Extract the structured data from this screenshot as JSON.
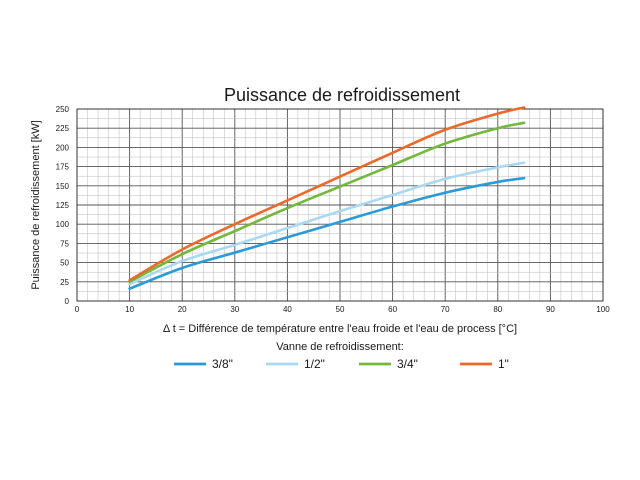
{
  "chart_data": {
    "type": "line",
    "title": "Puissance de refroidissement",
    "xlabel": "Δ t = Différence de température entre l'eau froide et l'eau de process [°C]",
    "ylabel": "Puissance de refroidissement [kW]",
    "xlim": [
      0,
      100
    ],
    "ylim": [
      0,
      250
    ],
    "xticks": [
      0,
      10,
      20,
      30,
      40,
      50,
      60,
      70,
      80,
      90,
      100
    ],
    "yticks": [
      0,
      25,
      50,
      75,
      100,
      125,
      150,
      175,
      200,
      225,
      250
    ],
    "grid": true,
    "legend_title": "Vanne de refroidissement:",
    "legend_position": "bottom",
    "series": [
      {
        "name": "3/8\"",
        "color": "#2a9ad8",
        "x": [
          10,
          20,
          30,
          40,
          50,
          60,
          70,
          80,
          85
        ],
        "y": [
          16,
          43,
          63,
          83,
          103,
          123,
          141,
          155,
          160
        ]
      },
      {
        "name": "1/2\"",
        "color": "#a9d9f2",
        "x": [
          10,
          20,
          30,
          40,
          50,
          60,
          70,
          80,
          85
        ],
        "y": [
          22,
          52,
          73,
          95,
          117,
          138,
          159,
          174,
          180
        ]
      },
      {
        "name": "3/4\"",
        "color": "#74b83b",
        "x": [
          10,
          20,
          30,
          40,
          50,
          60,
          70,
          80,
          85
        ],
        "y": [
          25,
          61,
          91,
          121,
          149,
          177,
          205,
          225,
          232
        ]
      },
      {
        "name": "1\"",
        "color": "#ea6a2a",
        "x": [
          10,
          20,
          30,
          40,
          50,
          60,
          70,
          80,
          85
        ],
        "y": [
          27,
          67,
          100,
          131,
          162,
          193,
          223,
          244,
          252
        ]
      }
    ]
  }
}
